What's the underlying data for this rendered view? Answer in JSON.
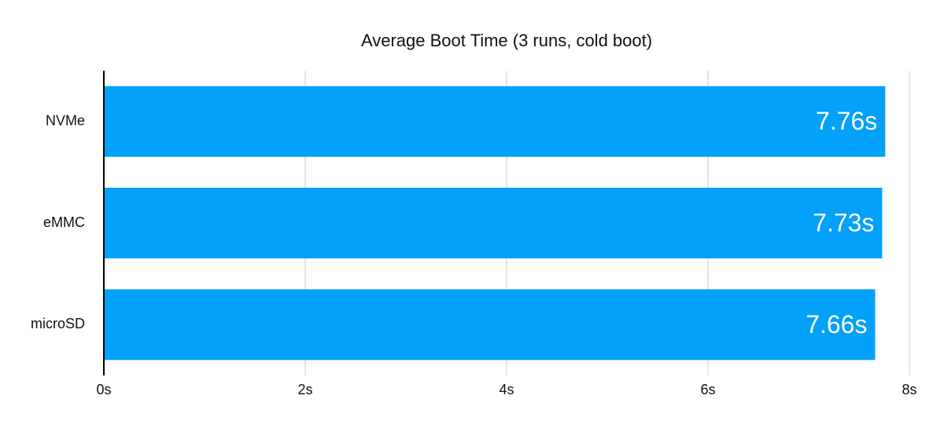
{
  "chart_data": {
    "type": "bar",
    "orientation": "horizontal",
    "title": "Average Boot Time (3 runs, cold boot)",
    "categories": [
      "NVMe",
      "eMMC",
      "microSD"
    ],
    "values": [
      7.76,
      7.73,
      7.66
    ],
    "value_labels": [
      "7.76s",
      "7.73s",
      "7.66s"
    ],
    "color": "#03a1fa",
    "xlim": [
      0,
      8
    ],
    "xticks": [
      {
        "value": 0,
        "label": "0s"
      },
      {
        "value": 2,
        "label": "2s"
      },
      {
        "value": 4,
        "label": "4s"
      },
      {
        "value": 6,
        "label": "6s"
      },
      {
        "value": 8,
        "label": "8s"
      }
    ],
    "grid": true
  }
}
